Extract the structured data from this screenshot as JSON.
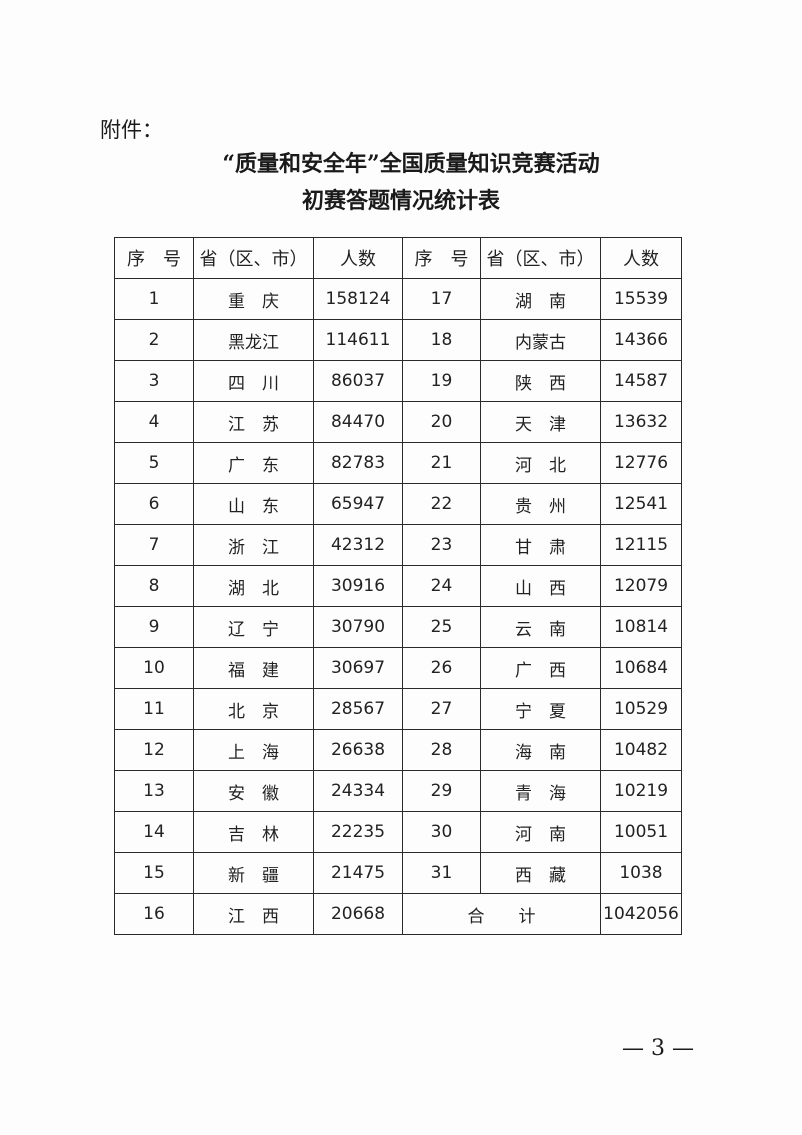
{
  "attachment_label": "附件：",
  "title_line1": "“质量和安全年”全国质量知识竞赛活动",
  "title_line2": "初赛答题情况统计表",
  "table": {
    "headers": [
      "序　号",
      "省（区、市）",
      "人数",
      "序　号",
      "省（区、市）",
      "人数"
    ],
    "rows": [
      {
        "l": [
          "1",
          "重　庆",
          "158124"
        ],
        "r": [
          "17",
          "湖　南",
          "15539"
        ]
      },
      {
        "l": [
          "2",
          "黑龙江",
          "114611"
        ],
        "r": [
          "18",
          "内蒙古",
          "14366"
        ]
      },
      {
        "l": [
          "3",
          "四　川",
          "86037"
        ],
        "r": [
          "19",
          "陕　西",
          "14587"
        ]
      },
      {
        "l": [
          "4",
          "江　苏",
          "84470"
        ],
        "r": [
          "20",
          "天　津",
          "13632"
        ]
      },
      {
        "l": [
          "5",
          "广　东",
          "82783"
        ],
        "r": [
          "21",
          "河　北",
          "12776"
        ]
      },
      {
        "l": [
          "6",
          "山　东",
          "65947"
        ],
        "r": [
          "22",
          "贵　州",
          "12541"
        ]
      },
      {
        "l": [
          "7",
          "浙　江",
          "42312"
        ],
        "r": [
          "23",
          "甘　肃",
          "12115"
        ]
      },
      {
        "l": [
          "8",
          "湖　北",
          "30916"
        ],
        "r": [
          "24",
          "山　西",
          "12079"
        ]
      },
      {
        "l": [
          "9",
          "辽　宁",
          "30790"
        ],
        "r": [
          "25",
          "云　南",
          "10814"
        ]
      },
      {
        "l": [
          "10",
          "福　建",
          "30697"
        ],
        "r": [
          "26",
          "广　西",
          "10684"
        ]
      },
      {
        "l": [
          "11",
          "北　京",
          "28567"
        ],
        "r": [
          "27",
          "宁　夏",
          "10529"
        ]
      },
      {
        "l": [
          "12",
          "上　海",
          "26638"
        ],
        "r": [
          "28",
          "海　南",
          "10482"
        ]
      },
      {
        "l": [
          "13",
          "安　徽",
          "24334"
        ],
        "r": [
          "29",
          "青　海",
          "10219"
        ]
      },
      {
        "l": [
          "14",
          "吉　林",
          "22235"
        ],
        "r": [
          "30",
          "河　南",
          "10051"
        ]
      },
      {
        "l": [
          "15",
          "新　疆",
          "21475"
        ],
        "r": [
          "31",
          "西　藏",
          "1038"
        ]
      }
    ],
    "last_row": {
      "l": [
        "16",
        "江　西",
        "20668"
      ],
      "total_label": "合　　计",
      "total_value": "1042056"
    }
  },
  "page_number": "— 3 —"
}
